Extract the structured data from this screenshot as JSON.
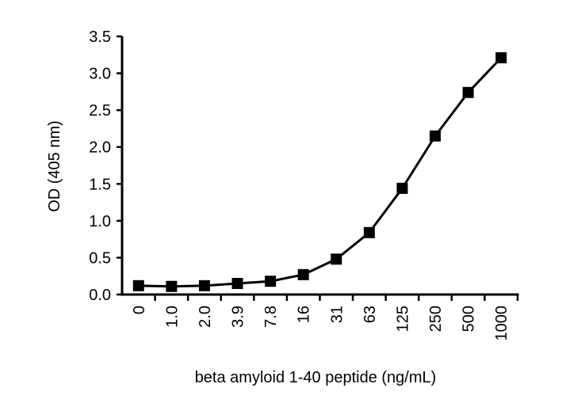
{
  "chart_data": {
    "type": "line",
    "title": "",
    "xlabel": "beta amyloid 1-40 peptide (ng/mL)",
    "ylabel": "OD (405 nm)",
    "categories": [
      "0",
      "1.0",
      "2.0",
      "3.9",
      "7.8",
      "16",
      "31",
      "63",
      "125",
      "250",
      "500",
      "1000"
    ],
    "series": [
      {
        "name": "OD",
        "values": [
          0.12,
          0.11,
          0.12,
          0.15,
          0.18,
          0.27,
          0.48,
          0.84,
          1.44,
          2.15,
          2.74,
          3.21
        ],
        "color": "#000000",
        "marker": "square"
      }
    ],
    "ylim": [
      0,
      3.5
    ],
    "yticks": [
      "0.0",
      "0.5",
      "1.0",
      "1.5",
      "2.0",
      "2.5",
      "3.0",
      "3.5"
    ],
    "grid": false,
    "legend": "none"
  }
}
